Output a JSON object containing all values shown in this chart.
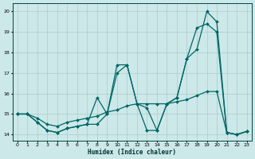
{
  "xlabel": "Humidex (Indice chaleur)",
  "xlim": [
    -0.5,
    23.5
  ],
  "ylim": [
    13.7,
    20.4
  ],
  "yticks": [
    14,
    15,
    16,
    17,
    18,
    19,
    20
  ],
  "xticks": [
    0,
    1,
    2,
    3,
    4,
    5,
    6,
    7,
    8,
    9,
    10,
    11,
    12,
    13,
    14,
    15,
    16,
    17,
    18,
    19,
    20,
    21,
    22,
    23
  ],
  "bg_color": "#cce8e8",
  "grid_color": "#aacccc",
  "line_color": "#006666",
  "line1_x": [
    0,
    1,
    2,
    3,
    4,
    5,
    6,
    7,
    8,
    9,
    10,
    11,
    12,
    13,
    14,
    15,
    16,
    17,
    18,
    19,
    20,
    21,
    22,
    23
  ],
  "line1_y": [
    15.0,
    15.0,
    14.6,
    14.2,
    14.1,
    14.3,
    14.4,
    14.5,
    15.8,
    15.0,
    17.4,
    17.4,
    15.5,
    15.3,
    14.2,
    15.5,
    15.8,
    17.7,
    18.15,
    20.0,
    19.5,
    14.1,
    14.0,
    14.15
  ],
  "line2_x": [
    0,
    1,
    2,
    3,
    4,
    5,
    6,
    7,
    8,
    9,
    10,
    11,
    12,
    13,
    14,
    15,
    16,
    17,
    18,
    19,
    20,
    21,
    22,
    23
  ],
  "line2_y": [
    15.0,
    15.0,
    14.6,
    14.2,
    14.1,
    14.3,
    14.4,
    14.5,
    14.5,
    15.0,
    17.0,
    17.4,
    15.5,
    14.2,
    14.2,
    15.5,
    15.8,
    17.7,
    19.2,
    19.4,
    19.0,
    14.1,
    14.0,
    14.15
  ],
  "line3_x": [
    0,
    1,
    2,
    3,
    4,
    5,
    6,
    7,
    8,
    9,
    10,
    11,
    12,
    13,
    14,
    15,
    16,
    17,
    18,
    19,
    20,
    21,
    22,
    23
  ],
  "line3_y": [
    15.0,
    15.0,
    14.8,
    14.5,
    14.4,
    14.6,
    14.7,
    14.8,
    14.9,
    15.1,
    15.2,
    15.4,
    15.5,
    15.5,
    15.5,
    15.5,
    15.6,
    15.7,
    15.9,
    16.1,
    16.1,
    14.1,
    14.0,
    14.15
  ]
}
